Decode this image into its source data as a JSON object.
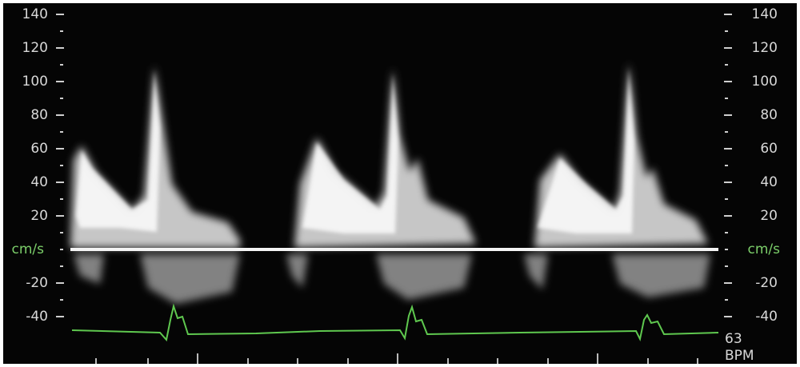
{
  "left_axis": {
    "ticks": [
      140,
      120,
      100,
      80,
      60,
      40,
      20,
      -20,
      -40
    ],
    "unit": "cm/s"
  },
  "right_axis": {
    "ticks": [
      140,
      120,
      100,
      80,
      60,
      40,
      20,
      -20,
      -40
    ],
    "unit": "cm/s"
  },
  "heart_rate": {
    "value": "63",
    "unit": "BPM"
  }
}
